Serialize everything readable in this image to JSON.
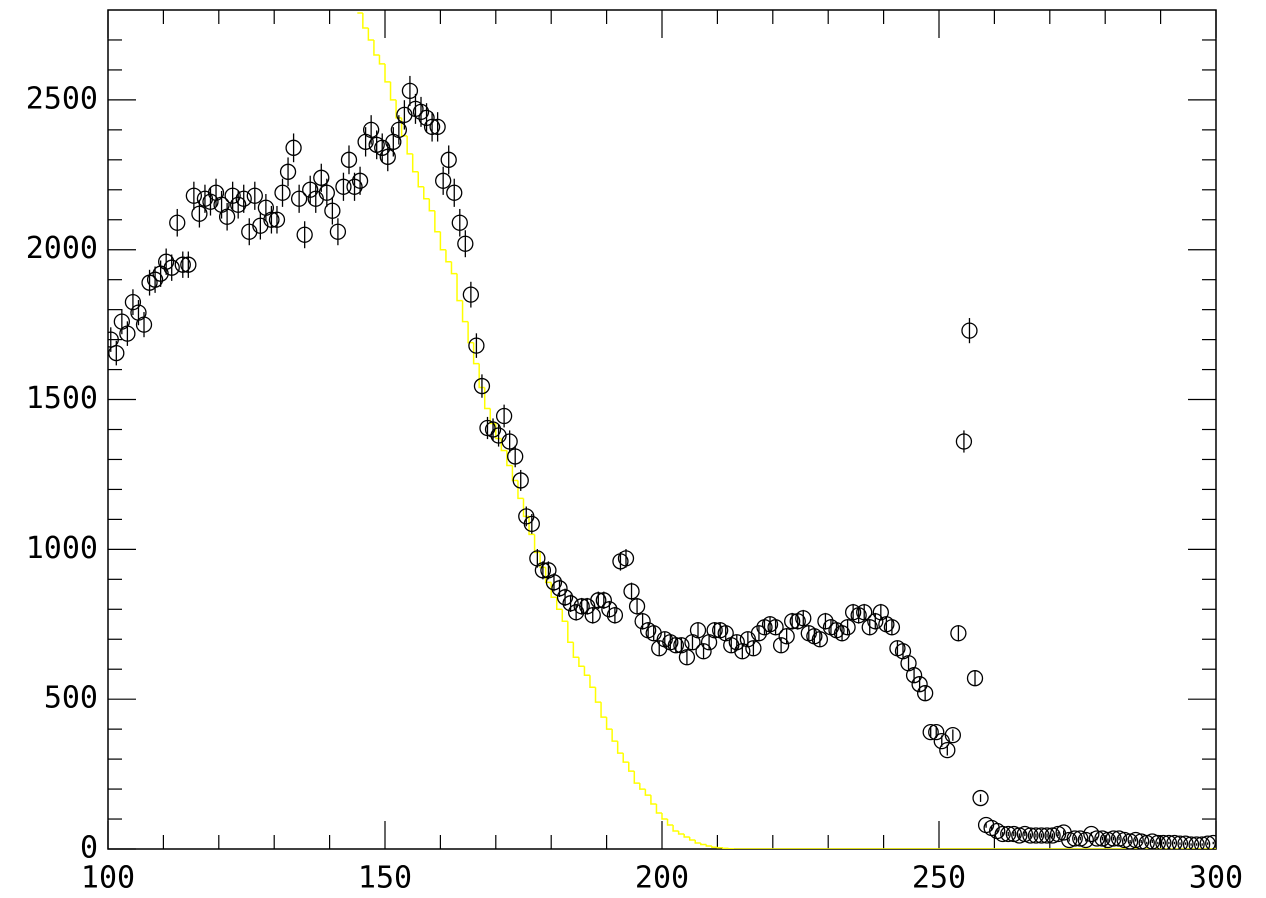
{
  "chart_data": {
    "type": "scatter",
    "xlim": [
      100,
      300
    ],
    "ylim": [
      0,
      2800
    ],
    "xticks": [
      100,
      150,
      200,
      250,
      300
    ],
    "yticks": [
      0,
      500,
      1000,
      1500,
      2000,
      2500
    ],
    "xminor_ticks": [
      110,
      120,
      130,
      140,
      160,
      170,
      180,
      190,
      210,
      220,
      230,
      240,
      260,
      270,
      280,
      290
    ],
    "yminor_ticks": [
      100,
      200,
      300,
      400,
      600,
      700,
      800,
      900,
      1100,
      1200,
      1300,
      1400,
      1600,
      1700,
      1800,
      1900,
      2100,
      2200,
      2300,
      2400,
      2600,
      2700
    ],
    "color": "#000000",
    "x": [
      100.5,
      101.5,
      102.5,
      103.5,
      104.5,
      105.5,
      106.5,
      107.5,
      108.5,
      109.5,
      110.5,
      111.5,
      112.5,
      113.5,
      114.5,
      115.5,
      116.5,
      117.5,
      118.5,
      119.5,
      120.5,
      121.5,
      122.5,
      123.5,
      124.5,
      125.5,
      126.5,
      127.5,
      128.5,
      129.5,
      130.5,
      131.5,
      132.5,
      133.5,
      134.5,
      135.5,
      136.5,
      137.5,
      138.5,
      139.5,
      140.5,
      141.5,
      142.5,
      143.5,
      144.5,
      145.5,
      146.5,
      147.5,
      148.5,
      149.5,
      150.5,
      151.5,
      152.5,
      153.5,
      154.5,
      155.5,
      156.5,
      157.5,
      158.5,
      159.5,
      160.5,
      161.5,
      162.5,
      163.5,
      164.5,
      165.5,
      166.5,
      167.5,
      168.5,
      169.5,
      170.5,
      171.5,
      172.5,
      173.5,
      174.5,
      175.5,
      176.5,
      177.5,
      178.5,
      179.5,
      180.5,
      181.5,
      182.5,
      183.5,
      184.5,
      185.5,
      186.5,
      187.5,
      188.5,
      189.5,
      190.5,
      191.5,
      192.5,
      193.5,
      194.5,
      195.5,
      196.5,
      197.5,
      198.5,
      199.5,
      200.5,
      201.5,
      202.5,
      203.5,
      204.5,
      205.5,
      206.5,
      207.5,
      208.5,
      209.5,
      210.5,
      211.5,
      212.5,
      213.5,
      214.5,
      215.5,
      216.5,
      217.5,
      218.5,
      219.5,
      220.5,
      221.5,
      222.5,
      223.5,
      224.5,
      225.5,
      226.5,
      227.5,
      228.5,
      229.5,
      230.5,
      231.5,
      232.5,
      233.5,
      234.5,
      235.5,
      236.5,
      237.5,
      238.5,
      239.5,
      240.5,
      241.5,
      242.5,
      243.5,
      244.5,
      245.5,
      246.5,
      247.5,
      248.5,
      249.5,
      250.5,
      251.5,
      252.5,
      253.5,
      254.5,
      255.5,
      256.5,
      257.5,
      258.5,
      259.5,
      260.5,
      261.5,
      262.5,
      263.5,
      264.5,
      265.5,
      266.5,
      267.5,
      268.5,
      269.5,
      270.5,
      271.5,
      272.5,
      273.5,
      274.5,
      275.5,
      276.5,
      277.5,
      278.5,
      279.5,
      280.5,
      281.5,
      282.5,
      283.5,
      284.5,
      285.5,
      286.5,
      287.5,
      288.5,
      289.5,
      290.5,
      291.5,
      292.5,
      293.5,
      294.5,
      295.5,
      296.5,
      297.5,
      298.5,
      299.5
    ],
    "values": [
      1700,
      1655,
      1760,
      1720,
      1825,
      1790,
      1750,
      1890,
      1900,
      1920,
      1960,
      1940,
      2090,
      1950,
      1950,
      2180,
      2120,
      2170,
      2160,
      2190,
      2150,
      2110,
      2180,
      2150,
      2170,
      2060,
      2180,
      2080,
      2140,
      2100,
      2100,
      2190,
      2260,
      2340,
      2170,
      2050,
      2200,
      2170,
      2240,
      2190,
      2130,
      2060,
      2210,
      2300,
      2210,
      2230,
      2360,
      2400,
      2350,
      2340,
      2310,
      2360,
      2400,
      2450,
      2530,
      2470,
      2460,
      2440,
      2410,
      2410,
      2230,
      2300,
      2190,
      2090,
      2020,
      1850,
      1680,
      1545,
      1405,
      1400,
      1380,
      1445,
      1360,
      1310,
      1230,
      1110,
      1085,
      970,
      930,
      930,
      890,
      870,
      840,
      820,
      790,
      810,
      810,
      780,
      830,
      830,
      800,
      780,
      960,
      970,
      860,
      810,
      760,
      730,
      720,
      670,
      700,
      690,
      680,
      680,
      640,
      690,
      730,
      660,
      690,
      730,
      730,
      720,
      680,
      690,
      660,
      700,
      670,
      720,
      740,
      750,
      740,
      680,
      710,
      760,
      760,
      770,
      720,
      710,
      700,
      760,
      740,
      730,
      720,
      740,
      790,
      780,
      790,
      740,
      760,
      790,
      750,
      740,
      670,
      660,
      620,
      580,
      550,
      520,
      390,
      390,
      360,
      330,
      380,
      720,
      1360,
      1730,
      570,
      170,
      80,
      70,
      60,
      50,
      50,
      50,
      45,
      50,
      45,
      45,
      45,
      45,
      45,
      50,
      55,
      30,
      35,
      35,
      30,
      50,
      35,
      35,
      30,
      35,
      35,
      30,
      25,
      30,
      25,
      20,
      25,
      20,
      20,
      20,
      20,
      18,
      18,
      15,
      15,
      15,
      18,
      20
    ],
    "errors": [
      41,
      41,
      42,
      41,
      43,
      42,
      42,
      43,
      44,
      44,
      44,
      44,
      46,
      44,
      44,
      47,
      46,
      47,
      46,
      47,
      46,
      46,
      47,
      46,
      47,
      45,
      47,
      46,
      46,
      46,
      46,
      47,
      48,
      48,
      47,
      45,
      47,
      47,
      47,
      47,
      46,
      45,
      47,
      48,
      47,
      47,
      49,
      49,
      48,
      48,
      48,
      49,
      49,
      49,
      50,
      50,
      50,
      49,
      49,
      49,
      47,
      48,
      47,
      46,
      45,
      43,
      41,
      39,
      37,
      37,
      37,
      38,
      37,
      36,
      35,
      33,
      33,
      31,
      30,
      30,
      30,
      29,
      29,
      29,
      28,
      28,
      28,
      28,
      29,
      29,
      28,
      28,
      31,
      31,
      29,
      28,
      28,
      27,
      27,
      26,
      26,
      26,
      26,
      26,
      25,
      26,
      27,
      26,
      26,
      27,
      27,
      27,
      26,
      26,
      26,
      26,
      26,
      27,
      27,
      27,
      27,
      26,
      27,
      28,
      28,
      28,
      27,
      27,
      26,
      28,
      27,
      27,
      27,
      27,
      28,
      28,
      28,
      27,
      28,
      28,
      27,
      27,
      26,
      26,
      25,
      24,
      23,
      23,
      20,
      20,
      19,
      18,
      19,
      27,
      37,
      42,
      24,
      13,
      9,
      8,
      8,
      7,
      7,
      7,
      7,
      7,
      7,
      7,
      7,
      7,
      7,
      7,
      7,
      5,
      6,
      6,
      5,
      7,
      6,
      6,
      5,
      6,
      6,
      5,
      5,
      5,
      5,
      4,
      5,
      4,
      4,
      4,
      4,
      4,
      4,
      4,
      4,
      4,
      4,
      4
    ],
    "step_line": {
      "color": "#ffff00",
      "x": [
        145,
        146,
        147,
        148,
        149,
        150,
        151,
        152,
        153,
        154,
        155,
        156,
        157,
        158,
        159,
        160,
        161,
        162,
        163,
        164,
        165,
        166,
        167,
        168,
        169,
        170,
        171,
        172,
        173,
        174,
        175,
        176,
        177,
        178,
        179,
        180,
        181,
        182,
        183,
        184,
        185,
        186,
        187,
        188,
        189,
        190,
        191,
        192,
        193,
        194,
        195,
        196,
        197,
        198,
        199,
        200,
        201,
        202,
        203,
        204,
        205,
        206,
        207,
        208,
        209,
        210,
        211,
        212,
        213,
        300
      ],
      "values": [
        2790,
        2740,
        2700,
        2650,
        2620,
        2560,
        2500,
        2440,
        2380,
        2320,
        2260,
        2210,
        2170,
        2130,
        2060,
        2000,
        1960,
        1920,
        1830,
        1760,
        1690,
        1620,
        1540,
        1470,
        1420,
        1370,
        1330,
        1280,
        1230,
        1170,
        1110,
        1050,
        990,
        940,
        890,
        840,
        800,
        760,
        690,
        640,
        610,
        580,
        540,
        490,
        440,
        400,
        360,
        320,
        290,
        260,
        220,
        200,
        180,
        150,
        120,
        100,
        80,
        60,
        50,
        40,
        30,
        20,
        15,
        10,
        6,
        4,
        2,
        1,
        0,
        0
      ]
    }
  }
}
